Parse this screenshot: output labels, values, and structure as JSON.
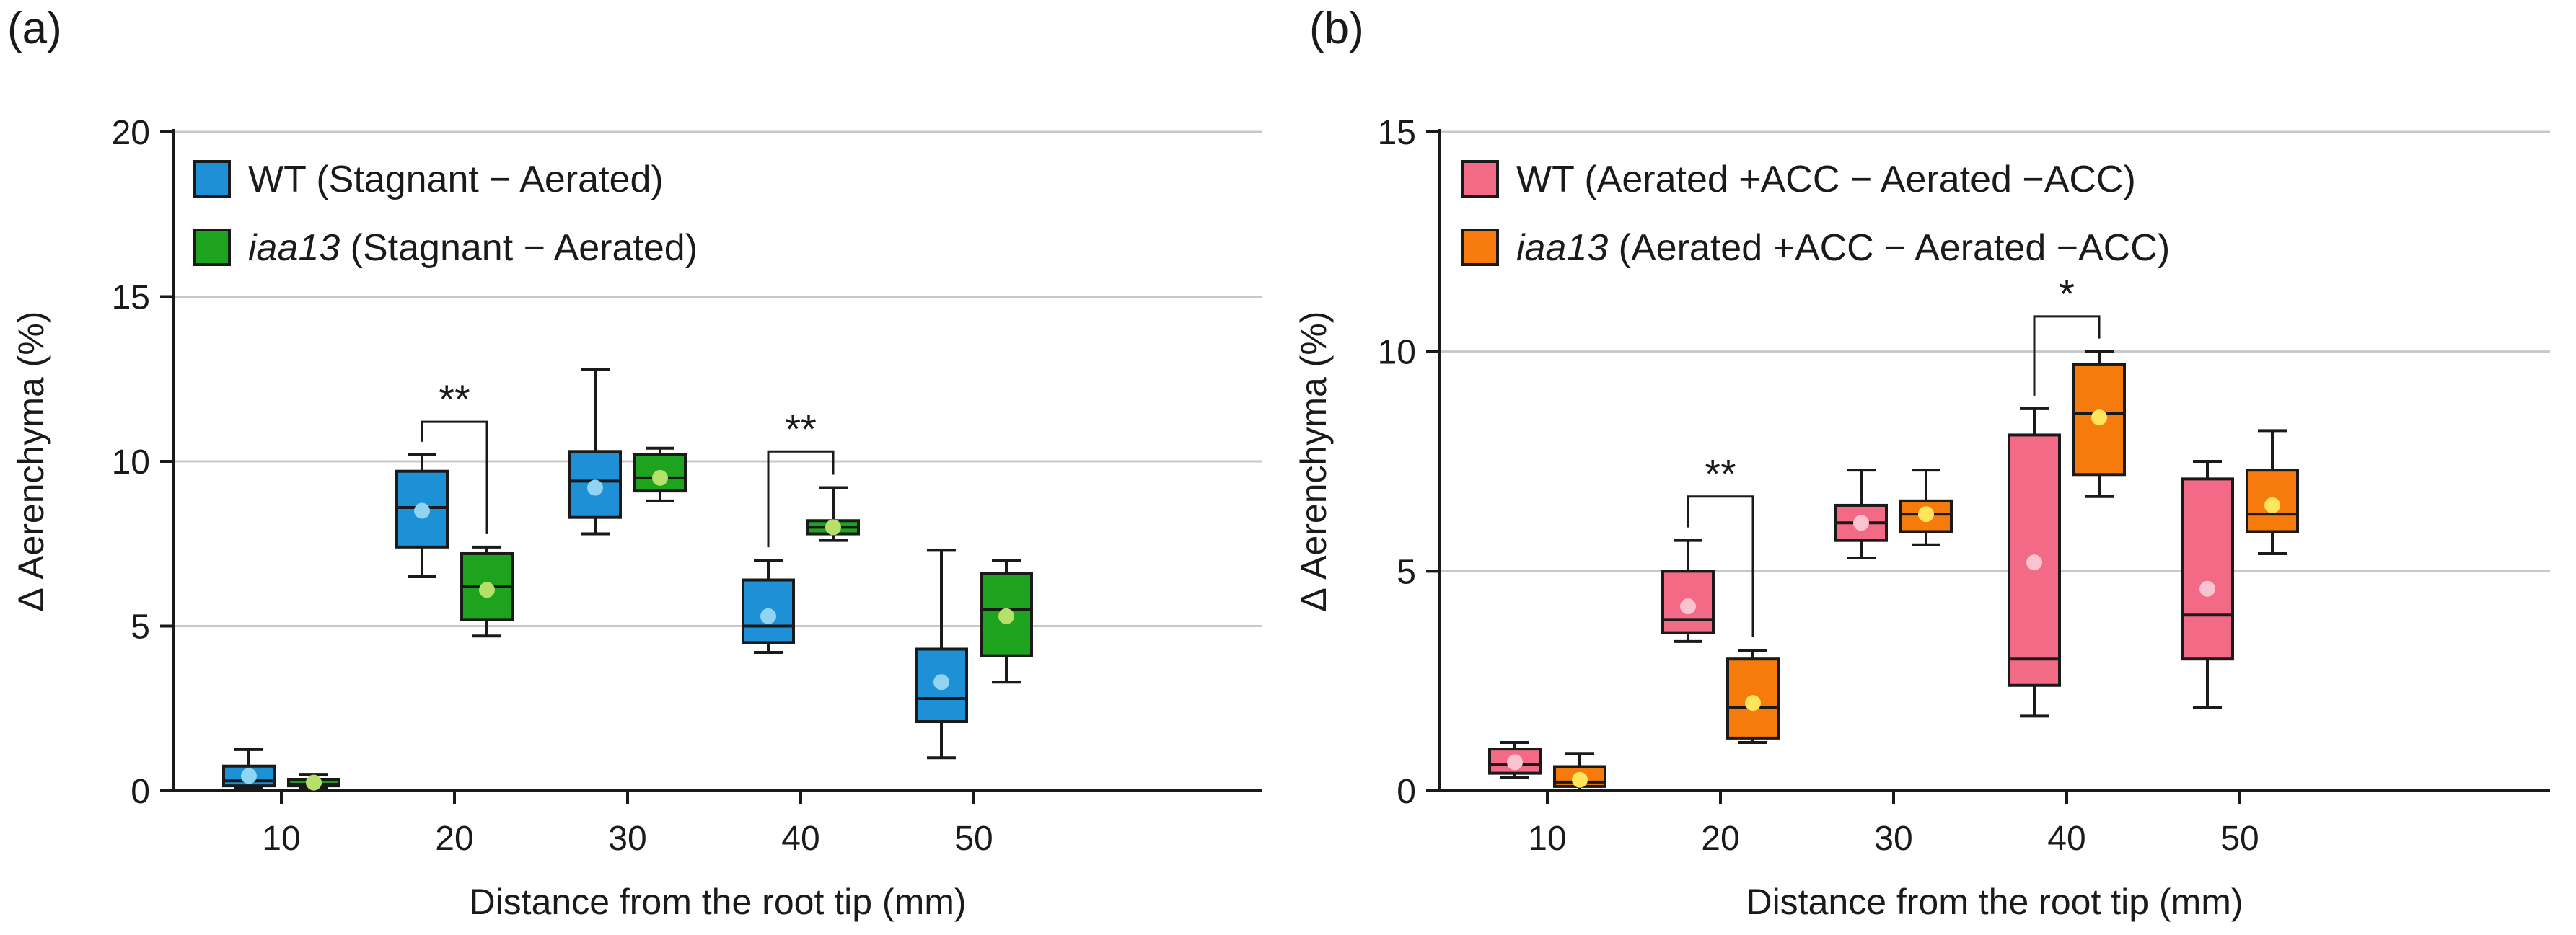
{
  "figure": {
    "colors": {
      "axis": "#1a1a1a",
      "grid": "#c8c8c8",
      "text": "#1a1a1a"
    }
  },
  "chart_data": [
    {
      "panel_label": "(a)",
      "type": "box",
      "xlabel": "Distance from the root tip (mm)",
      "ylabel": "Δ Aerenchyma (%)",
      "ylim": [
        0,
        20
      ],
      "yticks": [
        0,
        5,
        10,
        15,
        20
      ],
      "grid": true,
      "legend_position": "top-left",
      "categories": [
        "10",
        "20",
        "30",
        "40",
        "50"
      ],
      "series": [
        {
          "name_italic": "",
          "name_rest": "WT (Stagnant − Aerated)",
          "color": "#1e90d6",
          "mean_color": "#8fd4f0",
          "boxes": [
            {
              "min": 0.1,
              "q1": 0.15,
              "median": 0.3,
              "q3": 0.75,
              "max": 1.25,
              "mean": 0.45
            },
            {
              "min": 6.5,
              "q1": 7.4,
              "median": 8.6,
              "q3": 9.7,
              "max": 10.2,
              "mean": 8.5
            },
            {
              "min": 7.8,
              "q1": 8.3,
              "median": 9.4,
              "q3": 10.3,
              "max": 12.8,
              "mean": 9.2
            },
            {
              "min": 4.2,
              "q1": 4.5,
              "median": 5.0,
              "q3": 6.4,
              "max": 7.0,
              "mean": 5.3
            },
            {
              "min": 1.0,
              "q1": 2.1,
              "median": 2.8,
              "q3": 4.3,
              "max": 7.3,
              "mean": 3.3
            }
          ]
        },
        {
          "name_italic": "iaa13",
          "name_rest": " (Stagnant − Aerated)",
          "color": "#1ea31e",
          "mean_color": "#b5e06a",
          "boxes": [
            {
              "min": 0.1,
              "q1": 0.15,
              "median": 0.2,
              "q3": 0.35,
              "max": 0.5,
              "mean": 0.25
            },
            {
              "min": 4.7,
              "q1": 5.2,
              "median": 6.2,
              "q3": 7.2,
              "max": 7.4,
              "mean": 6.1
            },
            {
              "min": 8.8,
              "q1": 9.1,
              "median": 9.5,
              "q3": 10.2,
              "max": 10.4,
              "mean": 9.5
            },
            {
              "min": 7.6,
              "q1": 7.8,
              "median": 8.0,
              "q3": 8.2,
              "max": 9.2,
              "mean": 8.0
            },
            {
              "min": 3.3,
              "q1": 4.1,
              "median": 5.5,
              "q3": 6.6,
              "max": 7.0,
              "mean": 5.3
            }
          ]
        }
      ],
      "significance": [
        {
          "category_index": 1,
          "label": "**",
          "bracket_y": 11.2
        },
        {
          "category_index": 3,
          "label": "**",
          "bracket_y": 10.3
        }
      ]
    },
    {
      "panel_label": "(b)",
      "type": "box",
      "xlabel": "Distance from the root tip (mm)",
      "ylabel": "Δ Aerenchyma (%)",
      "ylim": [
        0,
        15
      ],
      "yticks": [
        0,
        5,
        10,
        15
      ],
      "grid": true,
      "legend_position": "top-left",
      "categories": [
        "10",
        "20",
        "30",
        "40",
        "50"
      ],
      "series": [
        {
          "name_italic": "",
          "name_rest": "WT (Aerated +ACC − Aerated −ACC)",
          "color": "#f26a86",
          "mean_color": "#f9c4cf",
          "boxes": [
            {
              "min": 0.3,
              "q1": 0.4,
              "median": 0.6,
              "q3": 0.95,
              "max": 1.1,
              "mean": 0.65
            },
            {
              "min": 3.4,
              "q1": 3.6,
              "median": 3.9,
              "q3": 5.0,
              "max": 5.7,
              "mean": 4.2
            },
            {
              "min": 5.3,
              "q1": 5.7,
              "median": 6.1,
              "q3": 6.5,
              "max": 7.3,
              "mean": 6.1
            },
            {
              "min": 1.7,
              "q1": 2.4,
              "median": 3.0,
              "q3": 8.1,
              "max": 8.7,
              "mean": 5.2
            },
            {
              "min": 1.9,
              "q1": 3.0,
              "median": 4.0,
              "q3": 7.1,
              "max": 7.5,
              "mean": 4.6
            }
          ]
        },
        {
          "name_italic": "iaa13",
          "name_rest": " (Aerated +ACC − Aerated −ACC)",
          "color": "#f57b0c",
          "mean_color": "#ffe45c",
          "boxes": [
            {
              "min": 0.0,
              "q1": 0.1,
              "median": 0.2,
              "q3": 0.55,
              "max": 0.85,
              "mean": 0.25
            },
            {
              "min": 1.1,
              "q1": 1.2,
              "median": 1.9,
              "q3": 3.0,
              "max": 3.2,
              "mean": 2.0
            },
            {
              "min": 5.6,
              "q1": 5.9,
              "median": 6.3,
              "q3": 6.6,
              "max": 7.3,
              "mean": 6.3
            },
            {
              "min": 6.7,
              "q1": 7.2,
              "median": 8.6,
              "q3": 9.7,
              "max": 10.0,
              "mean": 8.5
            },
            {
              "min": 5.4,
              "q1": 5.9,
              "median": 6.3,
              "q3": 7.3,
              "max": 8.2,
              "mean": 6.5
            }
          ]
        }
      ],
      "significance": [
        {
          "category_index": 1,
          "label": "**",
          "bracket_y": 6.7
        },
        {
          "category_index": 3,
          "label": "*",
          "bracket_y": 10.8
        }
      ]
    }
  ]
}
